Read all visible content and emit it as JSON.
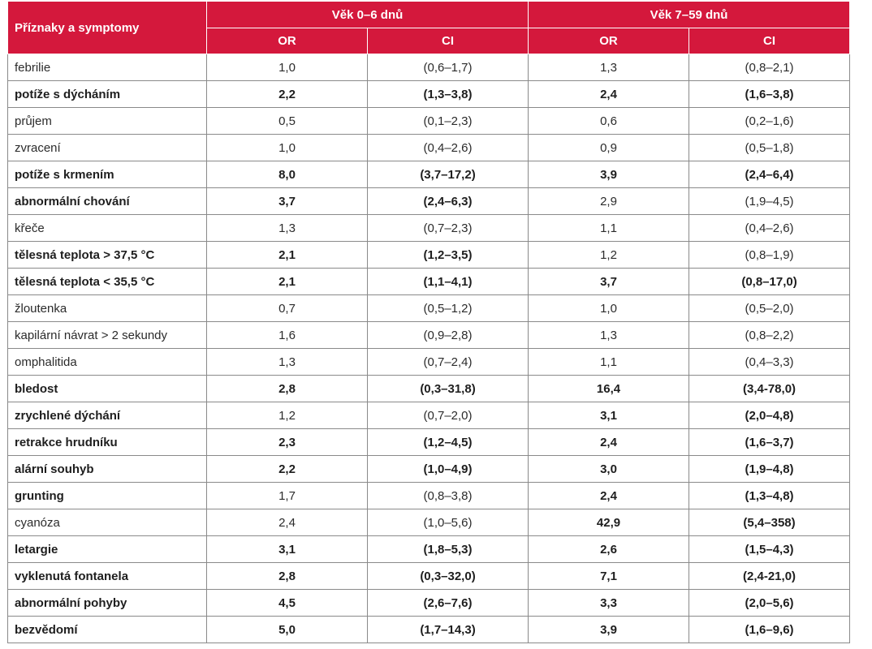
{
  "header": {
    "symptoms": "Příznaky a symptomy",
    "group1": "Věk 0–6 dnů",
    "group2": "Věk 7–59 dnů",
    "or": "OR",
    "ci": "CI"
  },
  "rows": [
    {
      "name": "febrilie",
      "b": false,
      "or1": "1,0",
      "ci1": "(0,6–1,7)",
      "b1": false,
      "or2": "1,3",
      "ci2": "(0,8–2,1)",
      "b2": false
    },
    {
      "name": "potíže s dýcháním",
      "b": true,
      "or1": "2,2",
      "ci1": "(1,3–3,8)",
      "b1": true,
      "or2": "2,4",
      "ci2": "(1,6–3,8)",
      "b2": true
    },
    {
      "name": "průjem",
      "b": false,
      "or1": "0,5",
      "ci1": "(0,1–2,3)",
      "b1": false,
      "or2": "0,6",
      "ci2": "(0,2–1,6)",
      "b2": false
    },
    {
      "name": "zvracení",
      "b": false,
      "or1": "1,0",
      "ci1": "(0,4–2,6)",
      "b1": false,
      "or2": "0,9",
      "ci2": "(0,5–1,8)",
      "b2": false
    },
    {
      "name": "potíže s krmením",
      "b": true,
      "or1": "8,0",
      "ci1": "(3,7–17,2)",
      "b1": true,
      "or2": "3,9",
      "ci2": "(2,4–6,4)",
      "b2": true
    },
    {
      "name": "abnormální chování",
      "b": true,
      "or1": "3,7",
      "ci1": "(2,4–6,3)",
      "b1": true,
      "or2": "2,9",
      "ci2": "(1,9–4,5)",
      "b2": false
    },
    {
      "name": "křeče",
      "b": false,
      "or1": "1,3",
      "ci1": "(0,7–2,3)",
      "b1": false,
      "or2": "1,1",
      "ci2": "(0,4–2,6)",
      "b2": false
    },
    {
      "name": "tělesná teplota > 37,5 °C",
      "b": true,
      "or1": "2,1",
      "ci1": "(1,2–3,5)",
      "b1": true,
      "or2": "1,2",
      "ci2": "(0,8–1,9)",
      "b2": false
    },
    {
      "name": "tělesná teplota < 35,5 °C",
      "b": true,
      "or1": "2,1",
      "ci1": "(1,1–4,1)",
      "b1": true,
      "or2": "3,7",
      "ci2": "(0,8–17,0)",
      "b2": true
    },
    {
      "name": "žloutenka",
      "b": false,
      "or1": "0,7",
      "ci1": "(0,5–1,2)",
      "b1": false,
      "or2": "1,0",
      "ci2": "(0,5–2,0)",
      "b2": false
    },
    {
      "name": "kapilární návrat > 2 sekundy",
      "b": false,
      "or1": "1,6",
      "ci1": "(0,9–2,8)",
      "b1": false,
      "or2": "1,3",
      "ci2": "(0,8–2,2)",
      "b2": false
    },
    {
      "name": "omphalitida",
      "b": false,
      "or1": "1,3",
      "ci1": "(0,7–2,4)",
      "b1": false,
      "or2": "1,1",
      "ci2": "(0,4–3,3)",
      "b2": false
    },
    {
      "name": "bledost",
      "b": true,
      "or1": "2,8",
      "ci1": "(0,3–31,8)",
      "b1": true,
      "or2": "16,4",
      "ci2": "(3,4-78,0)",
      "b2": true
    },
    {
      "name": "zrychlené dýchání",
      "b": true,
      "or1": "1,2",
      "ci1": "(0,7–2,0)",
      "b1": false,
      "or2": "3,1",
      "ci2": "(2,0–4,8)",
      "b2": true
    },
    {
      "name": "retrakce hrudníku",
      "b": true,
      "or1": "2,3",
      "ci1": "(1,2–4,5)",
      "b1": true,
      "or2": "2,4",
      "ci2": "(1,6–3,7)",
      "b2": true
    },
    {
      "name": "alární souhyb",
      "b": true,
      "or1": "2,2",
      "ci1": "(1,0–4,9)",
      "b1": true,
      "or2": "3,0",
      "ci2": "(1,9–4,8)",
      "b2": true
    },
    {
      "name": "grunting",
      "b": true,
      "or1": "1,7",
      "ci1": "(0,8–3,8)",
      "b1": false,
      "or2": "2,4",
      "ci2": "(1,3–4,8)",
      "b2": true
    },
    {
      "name": "cyanóza",
      "b": false,
      "or1": "2,4",
      "ci1": "(1,0–5,6)",
      "b1": false,
      "or2": "42,9",
      "ci2": "(5,4–358)",
      "b2": true
    },
    {
      "name": "letargie",
      "b": true,
      "or1": "3,1",
      "ci1": "(1,8–5,3)",
      "b1": true,
      "or2": "2,6",
      "ci2": "(1,5–4,3)",
      "b2": true
    },
    {
      "name": "vyklenutá fontanela",
      "b": true,
      "or1": "2,8",
      "ci1": "(0,3–32,0)",
      "b1": true,
      "or2": "7,1",
      "ci2": "(2,4-21,0)",
      "b2": true
    },
    {
      "name": "abnormální pohyby",
      "b": true,
      "or1": "4,5",
      "ci1": "(2,6–7,6)",
      "b1": true,
      "or2": "3,3",
      "ci2": "(2,0–5,6)",
      "b2": true
    },
    {
      "name": "bezvědomí",
      "b": true,
      "or1": "5,0",
      "ci1": "(1,7–14,3)",
      "b1": true,
      "or2": "3,9",
      "ci2": "(1,6–9,6)",
      "b2": true
    }
  ]
}
